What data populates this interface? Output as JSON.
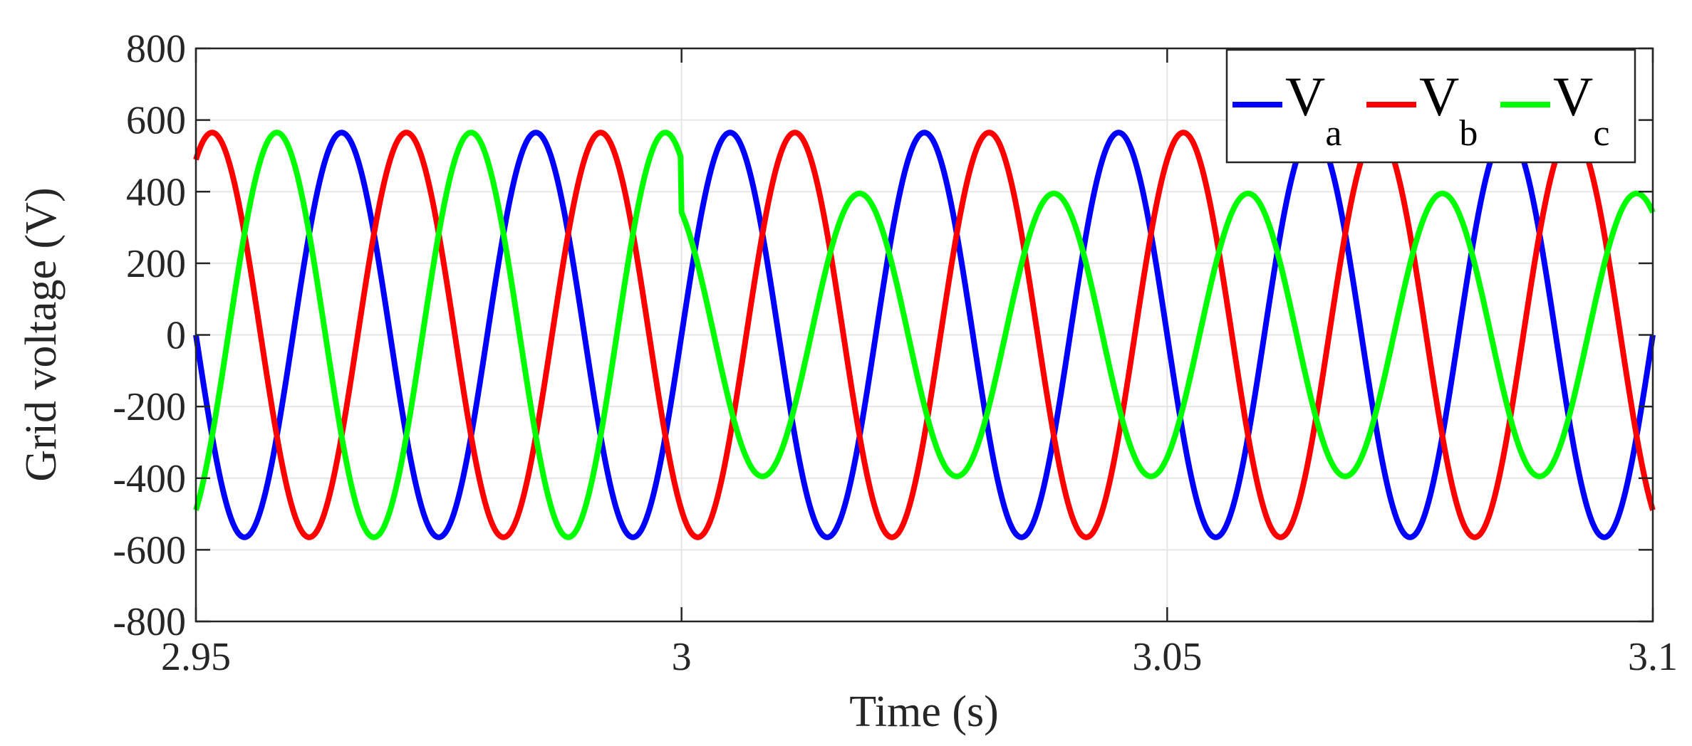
{
  "chart_data": {
    "type": "line",
    "title": "",
    "xlabel": "Time (s)",
    "ylabel": "Grid voltage (V)",
    "xlim": [
      2.95,
      3.1
    ],
    "ylim": [
      -800,
      800
    ],
    "xticks": [
      2.95,
      3,
      3.05,
      3.1
    ],
    "xtick_labels": [
      "2.95",
      "3",
      "3.05",
      "3.1"
    ],
    "yticks": [
      -800,
      -600,
      -400,
      -200,
      0,
      200,
      400,
      600,
      800
    ],
    "ytick_labels": [
      "-800",
      "-600",
      "-400",
      "-200",
      "0",
      "200",
      "400",
      "600",
      "800"
    ],
    "grid": true,
    "legend_placement": "top-right",
    "fault_time": 3.0,
    "frequency_hz": 50,
    "series": [
      {
        "name": "V",
        "subscript": "a",
        "color": "#0000ff",
        "amplitude_before": 565,
        "amplitude_after": 565,
        "phase_deg_before": 0,
        "phase_deg_after": 0
      },
      {
        "name": "V",
        "subscript": "b",
        "color": "#ff0000",
        "amplitude_before": 565,
        "amplitude_after": 565,
        "phase_deg_before": -120,
        "phase_deg_after": -120
      },
      {
        "name": "V",
        "subscript": "c",
        "color": "#00ff00",
        "amplitude_before": 565,
        "amplitude_after": 395,
        "phase_deg_before": 120,
        "phase_deg_after": 120
      }
    ]
  }
}
